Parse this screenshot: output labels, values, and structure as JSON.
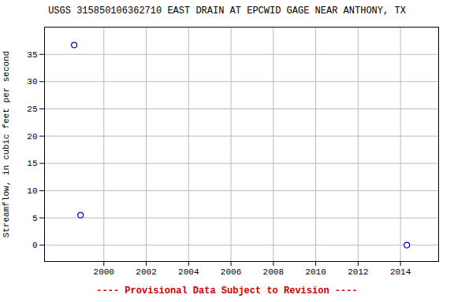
{
  "chart_data": {
    "type": "scatter",
    "title": "USGS 315850106362710 EAST DRAIN AT EPCWID GAGE NEAR ANTHONY, TX",
    "xlabel": "---- Provisional Data Subject to Revision ----",
    "ylabel": "Streamflow, in cubic feet per second",
    "x": [
      1998.6,
      1998.9,
      2014.3
    ],
    "values": [
      36.7,
      5.5,
      0.0
    ],
    "color": "#0000bb",
    "marker": "circle",
    "xlim": [
      1997.2,
      2015.8
    ],
    "ylim": [
      -3,
      40
    ],
    "xticks": [
      2000,
      2002,
      2004,
      2006,
      2008,
      2010,
      2012,
      2014
    ],
    "yticks": [
      0,
      5,
      10,
      15,
      20,
      25,
      30,
      35
    ],
    "grid": true
  }
}
